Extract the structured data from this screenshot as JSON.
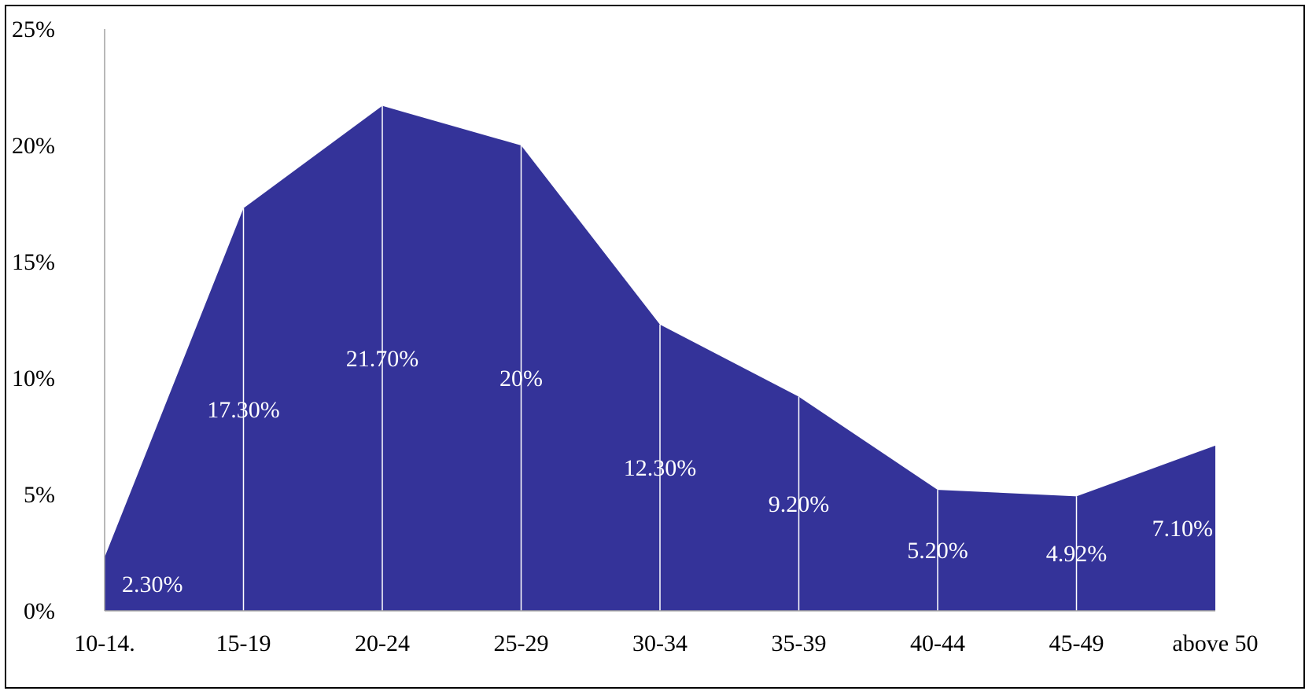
{
  "chart_data": {
    "type": "area",
    "categories": [
      "10-14.",
      "15-19",
      "20-24",
      "25-29",
      "30-34",
      "35-39",
      "40-44",
      "45-49",
      "above 50"
    ],
    "values": [
      2.3,
      17.3,
      21.7,
      20,
      12.3,
      9.2,
      5.2,
      4.92,
      7.1
    ],
    "data_labels": [
      "2.30%",
      "17.30%",
      "21.70%",
      "20%",
      "12.30%",
      "9.20%",
      "5.20%",
      "4.92%",
      "7.10%"
    ],
    "y_ticks": [
      "0%",
      "5%",
      "10%",
      "15%",
      "20%",
      "25%"
    ],
    "ylim": [
      0,
      25
    ],
    "title": "",
    "xlabel": "",
    "ylabel": "",
    "grid": false,
    "legend": "none",
    "colors": {
      "fill": "#343399",
      "data_label": "#ffffff",
      "axis": "#a0a0a0",
      "divider": "#ffffff"
    }
  }
}
